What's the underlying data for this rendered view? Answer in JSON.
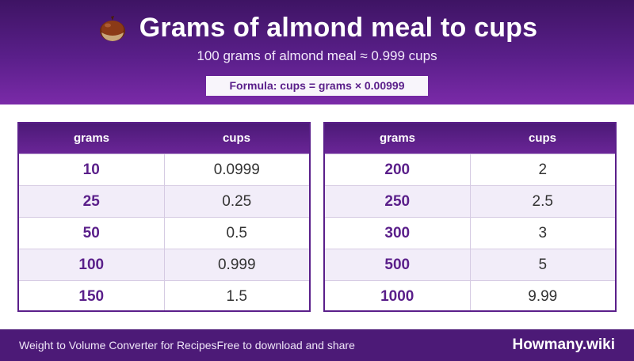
{
  "header": {
    "icon": "chestnut-icon",
    "title": "Grams of almond meal to cups",
    "subtitle": "100 grams of almond meal ≈ 0.999 cups",
    "formula": "Formula: cups = grams × 0.00999"
  },
  "tables": [
    {
      "headers": [
        "grams",
        "cups"
      ],
      "rows": [
        {
          "grams": "10",
          "cups": "0.0999"
        },
        {
          "grams": "25",
          "cups": "0.25"
        },
        {
          "grams": "50",
          "cups": "0.5"
        },
        {
          "grams": "100",
          "cups": "0.999"
        },
        {
          "grams": "150",
          "cups": "1.5"
        }
      ]
    },
    {
      "headers": [
        "grams",
        "cups"
      ],
      "rows": [
        {
          "grams": "200",
          "cups": "2"
        },
        {
          "grams": "250",
          "cups": "2.5"
        },
        {
          "grams": "300",
          "cups": "3"
        },
        {
          "grams": "500",
          "cups": "5"
        },
        {
          "grams": "1000",
          "cups": "9.99"
        }
      ]
    }
  ],
  "footer": {
    "left_text": "Weight to Volume Converter for RecipesFree to download and share",
    "brand": "Howmany.wiki"
  },
  "colors": {
    "header_purple": "#5a1f8a",
    "footer_purple": "#4c1a77",
    "alt_row": "#f2edf9",
    "accent_text": "#5a1f8a"
  }
}
